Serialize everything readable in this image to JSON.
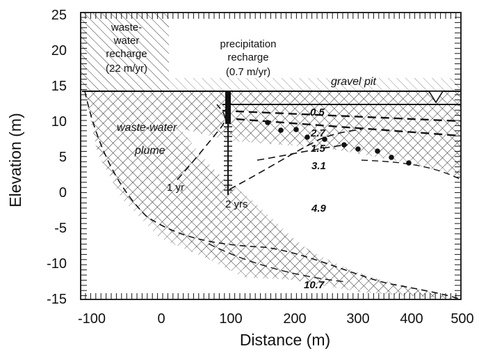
{
  "axes": {
    "x_title": "Distance (m)",
    "y_title": "Elevation (m)",
    "x_ticks": [
      "-100",
      "0",
      "100",
      "200",
      "300",
      "400",
      "500"
    ],
    "y_ticks": [
      "25",
      "20",
      "15",
      "10",
      "5",
      "0",
      "-5",
      "-10",
      "-15"
    ]
  },
  "labels": {
    "wastewater_recharge": [
      "waste-",
      "water",
      "recharge",
      "(22 m/yr)"
    ],
    "precip_recharge": [
      "precipitation",
      "recharge",
      "(0.7 m/yr)"
    ],
    "gravel_pit": "gravel pit",
    "plume": [
      "waste-water",
      "plume"
    ],
    "time_1yr": "1 yr",
    "time_2yrs": "2 yrs"
  },
  "values": [
    "0.5",
    "2.7",
    "1.5",
    "3.1",
    "4.9",
    "10.7"
  ],
  "colors": {
    "ink": "#111111",
    "hatch": "#333333",
    "background": "#ffffff"
  }
}
